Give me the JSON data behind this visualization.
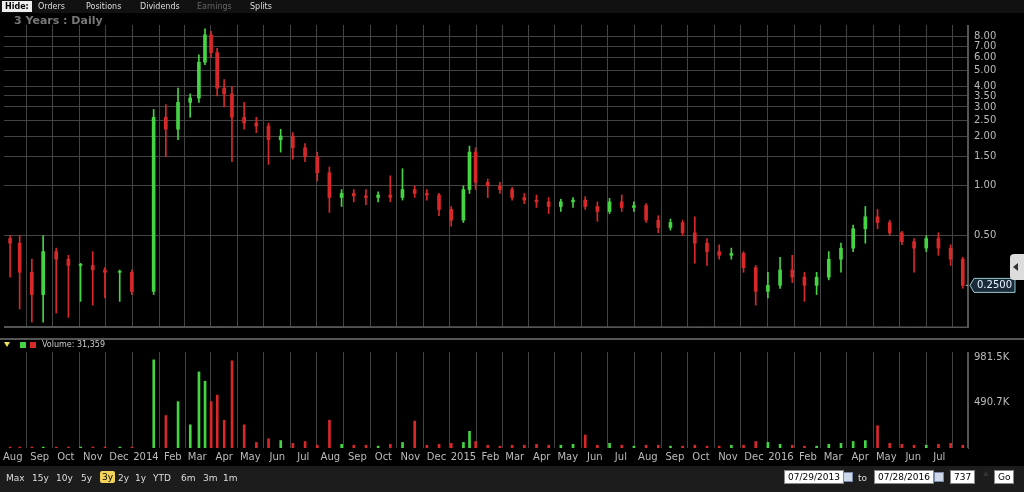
{
  "chart_data": [
    {
      "type": "candlestick",
      "subtitle": "3 Years : Daily",
      "log": true,
      "grid": true,
      "tick_labels": "y",
      "x": [
        "2013-07-29",
        "2013-08-09",
        "2013-08-23",
        "2013-09-05",
        "2013-09-20",
        "2013-10-04",
        "2013-10-18",
        "2013-11-01",
        "2013-11-15",
        "2013-12-02",
        "2013-12-16",
        "2014-01-10",
        "2014-01-24",
        "2014-02-07",
        "2014-02-21",
        "2014-03-03",
        "2014-03-10",
        "2014-03-17",
        "2014-03-24",
        "2014-04-01",
        "2014-04-10",
        "2014-04-24",
        "2014-05-08",
        "2014-05-22",
        "2014-06-05",
        "2014-06-19",
        "2014-07-03",
        "2014-07-17",
        "2014-07-31",
        "2014-08-14",
        "2014-08-28",
        "2014-09-11",
        "2014-09-25",
        "2014-10-09",
        "2014-10-23",
        "2014-11-06",
        "2014-11-20",
        "2014-12-04",
        "2014-12-18",
        "2015-01-01",
        "2015-01-08",
        "2015-01-15",
        "2015-01-29",
        "2015-02-12",
        "2015-02-26",
        "2015-03-12",
        "2015-03-26",
        "2015-04-09",
        "2015-04-23",
        "2015-05-07",
        "2015-05-21",
        "2015-06-04",
        "2015-06-18",
        "2015-07-02",
        "2015-07-16",
        "2015-07-30",
        "2015-08-13",
        "2015-08-27",
        "2015-09-10",
        "2015-09-24",
        "2015-10-08",
        "2015-10-22",
        "2015-11-05",
        "2015-11-19",
        "2015-12-03",
        "2015-12-17",
        "2015-12-31",
        "2016-01-14",
        "2016-01-28",
        "2016-02-11",
        "2016-02-25",
        "2016-03-10",
        "2016-03-24",
        "2016-04-07",
        "2016-04-21",
        "2016-05-05",
        "2016-05-19",
        "2016-06-02",
        "2016-06-16",
        "2016-06-30",
        "2016-07-14",
        "2016-07-28"
      ],
      "ohlc": [
        [
          0.48,
          0.5,
          0.28,
          0.45
        ],
        [
          0.45,
          0.5,
          0.18,
          0.3
        ],
        [
          0.3,
          0.36,
          0.15,
          0.22
        ],
        [
          0.22,
          0.5,
          0.15,
          0.4
        ],
        [
          0.4,
          0.42,
          0.17,
          0.36
        ],
        [
          0.36,
          0.38,
          0.16,
          0.33
        ],
        [
          0.33,
          0.34,
          0.2,
          0.33
        ],
        [
          0.33,
          0.4,
          0.19,
          0.31
        ],
        [
          0.31,
          0.32,
          0.21,
          0.3
        ],
        [
          0.3,
          0.31,
          0.2,
          0.3
        ],
        [
          0.3,
          0.31,
          0.22,
          0.23
        ],
        [
          0.23,
          2.9,
          0.22,
          2.6
        ],
        [
          2.6,
          3.1,
          1.5,
          2.2
        ],
        [
          2.2,
          3.9,
          1.9,
          3.2
        ],
        [
          3.2,
          3.6,
          2.6,
          3.4
        ],
        [
          3.4,
          6.2,
          3.2,
          5.6
        ],
        [
          5.6,
          8.9,
          5.4,
          8.2
        ],
        [
          8.2,
          8.6,
          6.0,
          6.4
        ],
        [
          6.4,
          6.8,
          3.5,
          3.9
        ],
        [
          3.9,
          4.4,
          3.0,
          3.6
        ],
        [
          3.6,
          4.0,
          1.4,
          2.6
        ],
        [
          2.6,
          3.2,
          2.2,
          2.4
        ],
        [
          2.4,
          2.6,
          2.1,
          2.3
        ],
        [
          2.3,
          2.4,
          1.35,
          1.9
        ],
        [
          1.9,
          2.2,
          1.6,
          2.0
        ],
        [
          2.0,
          2.1,
          1.45,
          1.7
        ],
        [
          1.7,
          1.8,
          1.4,
          1.5
        ],
        [
          1.5,
          1.6,
          1.07,
          1.2
        ],
        [
          1.2,
          1.3,
          0.69,
          0.85
        ],
        [
          0.85,
          0.95,
          0.75,
          0.9
        ],
        [
          0.9,
          0.95,
          0.8,
          0.87
        ],
        [
          0.87,
          0.95,
          0.77,
          0.85
        ],
        [
          0.85,
          0.92,
          0.8,
          0.88
        ],
        [
          0.88,
          1.15,
          0.8,
          0.85
        ],
        [
          0.85,
          1.27,
          0.82,
          0.95
        ],
        [
          0.95,
          1.0,
          0.85,
          0.9
        ],
        [
          0.9,
          0.95,
          0.82,
          0.88
        ],
        [
          0.88,
          0.9,
          0.66,
          0.72
        ],
        [
          0.72,
          0.75,
          0.57,
          0.62
        ],
        [
          0.62,
          1.0,
          0.6,
          0.95
        ],
        [
          0.95,
          1.74,
          0.9,
          1.6
        ],
        [
          1.6,
          1.7,
          0.95,
          1.05
        ],
        [
          1.05,
          1.1,
          0.85,
          1.0
        ],
        [
          1.0,
          1.05,
          0.9,
          0.95
        ],
        [
          0.95,
          0.98,
          0.82,
          0.85
        ],
        [
          0.85,
          0.9,
          0.78,
          0.82
        ],
        [
          0.82,
          0.88,
          0.74,
          0.8
        ],
        [
          0.8,
          0.85,
          0.68,
          0.75
        ],
        [
          0.75,
          0.83,
          0.7,
          0.8
        ],
        [
          0.8,
          0.85,
          0.74,
          0.82
        ],
        [
          0.82,
          0.86,
          0.72,
          0.75
        ],
        [
          0.75,
          0.8,
          0.61,
          0.7
        ],
        [
          0.7,
          0.84,
          0.68,
          0.8
        ],
        [
          0.8,
          0.88,
          0.7,
          0.74
        ],
        [
          0.74,
          0.8,
          0.7,
          0.76
        ],
        [
          0.76,
          0.78,
          0.6,
          0.62
        ],
        [
          0.62,
          0.66,
          0.52,
          0.56
        ],
        [
          0.56,
          0.63,
          0.54,
          0.6
        ],
        [
          0.6,
          0.62,
          0.5,
          0.52
        ],
        [
          0.52,
          0.65,
          0.34,
          0.45
        ],
        [
          0.45,
          0.48,
          0.33,
          0.4
        ],
        [
          0.4,
          0.44,
          0.36,
          0.38
        ],
        [
          0.38,
          0.42,
          0.36,
          0.39
        ],
        [
          0.39,
          0.4,
          0.3,
          0.32
        ],
        [
          0.32,
          0.33,
          0.19,
          0.23
        ],
        [
          0.23,
          0.3,
          0.21,
          0.25
        ],
        [
          0.25,
          0.37,
          0.24,
          0.31
        ],
        [
          0.31,
          0.38,
          0.26,
          0.28
        ],
        [
          0.28,
          0.3,
          0.2,
          0.25
        ],
        [
          0.25,
          0.3,
          0.22,
          0.28
        ],
        [
          0.28,
          0.4,
          0.27,
          0.36
        ],
        [
          0.36,
          0.45,
          0.3,
          0.42
        ],
        [
          0.42,
          0.58,
          0.4,
          0.55
        ],
        [
          0.55,
          0.75,
          0.45,
          0.65
        ],
        [
          0.65,
          0.72,
          0.55,
          0.6
        ],
        [
          0.6,
          0.62,
          0.5,
          0.52
        ],
        [
          0.52,
          0.53,
          0.44,
          0.46
        ],
        [
          0.46,
          0.48,
          0.3,
          0.42
        ],
        [
          0.42,
          0.5,
          0.4,
          0.48
        ],
        [
          0.48,
          0.52,
          0.38,
          0.42
        ],
        [
          0.42,
          0.44,
          0.33,
          0.36
        ],
        [
          0.36,
          0.37,
          0.24,
          0.25
        ]
      ],
      "colors": [
        "#d8282a",
        "#d8282a",
        "#d8282a",
        "#45d443",
        "#d8282a",
        "#d8282a",
        "#45d443",
        "#d8282a",
        "#d8282a",
        "#45d443",
        "#d8282a",
        "#45d443",
        "#d8282a",
        "#45d443",
        "#45d443",
        "#45d443",
        "#45d443",
        "#d8282a",
        "#d8282a",
        "#d8282a",
        "#d8282a",
        "#d8282a",
        "#d8282a",
        "#d8282a",
        "#45d443",
        "#d8282a",
        "#d8282a",
        "#d8282a",
        "#d8282a",
        "#45d443",
        "#d8282a",
        "#d8282a",
        "#45d443",
        "#d8282a",
        "#45d443",
        "#d8282a",
        "#d8282a",
        "#d8282a",
        "#d8282a",
        "#45d443",
        "#45d443",
        "#d8282a",
        "#d8282a",
        "#d8282a",
        "#d8282a",
        "#d8282a",
        "#d8282a",
        "#d8282a",
        "#45d443",
        "#45d443",
        "#d8282a",
        "#d8282a",
        "#45d443",
        "#d8282a",
        "#45d443",
        "#d8282a",
        "#d8282a",
        "#45d443",
        "#d8282a",
        "#d8282a",
        "#d8282a",
        "#d8282a",
        "#45d443",
        "#d8282a",
        "#d8282a",
        "#45d443",
        "#45d443",
        "#d8282a",
        "#d8282a",
        "#45d443",
        "#45d443",
        "#45d443",
        "#45d443",
        "#45d443",
        "#d8282a",
        "#d8282a",
        "#d8282a",
        "#d8282a",
        "#45d443",
        "#d8282a",
        "#d8282a",
        "#d8282a"
      ],
      "xlim": [
        "2013-07-22",
        "2016-08-03"
      ],
      "xticks": [
        {
          "value": "2013-08-01",
          "label": null
        },
        {
          "value": "2013-09-01",
          "label": null
        },
        {
          "value": "2013-10-01",
          "label": null
        },
        {
          "value": "2013-11-01",
          "label": null
        },
        {
          "value": "2013-12-01",
          "label": null
        },
        {
          "value": "2014-01-01",
          "label": null
        },
        {
          "value": "2014-02-01",
          "label": null
        },
        {
          "value": "2014-03-01",
          "label": null
        },
        {
          "value": "2014-04-01",
          "label": null
        },
        {
          "value": "2014-05-01",
          "label": null
        },
        {
          "value": "2014-06-01",
          "label": null
        },
        {
          "value": "2014-07-01",
          "label": null
        },
        {
          "value": "2014-08-01",
          "label": null
        },
        {
          "value": "2014-09-01",
          "label": null
        },
        {
          "value": "2014-10-01",
          "label": null
        },
        {
          "value": "2014-11-01",
          "label": null
        },
        {
          "value": "2014-12-01",
          "label": null
        },
        {
          "value": "2015-01-01",
          "label": null
        },
        {
          "value": "2015-02-01",
          "label": null
        },
        {
          "value": "2015-03-01",
          "label": null
        },
        {
          "value": "2015-04-01",
          "label": null
        },
        {
          "value": "2015-05-01",
          "label": null
        },
        {
          "value": "2015-06-01",
          "label": null
        },
        {
          "value": "2015-07-01",
          "label": null
        },
        {
          "value": "2015-08-01",
          "label": null
        },
        {
          "value": "2015-09-01",
          "label": null
        },
        {
          "value": "2015-10-01",
          "label": null
        },
        {
          "value": "2015-11-01",
          "label": null
        },
        {
          "value": "2015-12-01",
          "label": null
        },
        {
          "value": "2016-01-01",
          "label": null
        },
        {
          "value": "2016-02-01",
          "label": null
        },
        {
          "value": "2016-03-01",
          "label": null
        },
        {
          "value": "2016-04-01",
          "label": null
        },
        {
          "value": "2016-05-01",
          "label": null
        },
        {
          "value": "2016-06-01",
          "label": null
        },
        {
          "value": "2016-07-01",
          "label": null
        }
      ],
      "ylim": [
        0.14,
        9.4
      ],
      "yticks": [
        {
          "value": 0.5,
          "label": "0.50"
        },
        {
          "value": 1,
          "label": "1.00"
        },
        {
          "value": 1.5,
          "label": "1.50"
        },
        {
          "value": 2,
          "label": "2.00"
        },
        {
          "value": 2.5,
          "label": "2.50"
        },
        {
          "value": 3,
          "label": "3.00"
        },
        {
          "value": 3.5,
          "label": "3.50"
        },
        {
          "value": 4,
          "label": "4.00"
        },
        {
          "value": 5,
          "label": "5.00"
        },
        {
          "value": 6,
          "label": "6.00"
        },
        {
          "value": 7,
          "label": "7.00"
        },
        {
          "value": 8,
          "label": "8.00"
        }
      ],
      "annotations": [
        "Hide:",
        "Orders",
        "Positions",
        "Dividends",
        "Earnings",
        "Splits",
        {
          "text": "0.2500",
          "x": "2016-07-28",
          "y": 0.25
        }
      ]
    },
    {
      "type": "bar",
      "grid": "x",
      "x": [
        "2013-07-29",
        "2013-08-09",
        "2013-08-23",
        "2013-09-05",
        "2013-09-20",
        "2013-10-04",
        "2013-10-18",
        "2013-11-01",
        "2013-11-15",
        "2013-12-02",
        "2013-12-16",
        "2014-01-10",
        "2014-01-24",
        "2014-02-07",
        "2014-02-21",
        "2014-03-03",
        "2014-03-10",
        "2014-03-17",
        "2014-03-24",
        "2014-04-01",
        "2014-04-10",
        "2014-04-24",
        "2014-05-08",
        "2014-05-22",
        "2014-06-05",
        "2014-06-19",
        "2014-07-03",
        "2014-07-17",
        "2014-07-31",
        "2014-08-14",
        "2014-08-28",
        "2014-09-11",
        "2014-09-25",
        "2014-10-09",
        "2014-10-23",
        "2014-11-06",
        "2014-11-20",
        "2014-12-04",
        "2014-12-18",
        "2015-01-01",
        "2015-01-08",
        "2015-01-15",
        "2015-01-29",
        "2015-02-12",
        "2015-02-26",
        "2015-03-12",
        "2015-03-26",
        "2015-04-09",
        "2015-04-23",
        "2015-05-07",
        "2015-05-21",
        "2015-06-04",
        "2015-06-18",
        "2015-07-02",
        "2015-07-16",
        "2015-07-30",
        "2015-08-13",
        "2015-08-27",
        "2015-09-10",
        "2015-09-24",
        "2015-10-08",
        "2015-10-22",
        "2015-11-05",
        "2015-11-19",
        "2015-12-03",
        "2015-12-17",
        "2015-12-31",
        "2016-01-14",
        "2016-01-28",
        "2016-02-11",
        "2016-02-25",
        "2016-03-10",
        "2016-03-24",
        "2016-04-07",
        "2016-04-21",
        "2016-05-05",
        "2016-05-19",
        "2016-06-02",
        "2016-06-16",
        "2016-06-30",
        "2016-07-14",
        "2016-07-28"
      ],
      "values": [
        10000,
        10000,
        10000,
        10000,
        10000,
        10000,
        10000,
        10000,
        10000,
        10000,
        10000,
        950000,
        350000,
        500000,
        250000,
        820000,
        720000,
        500000,
        570000,
        300000,
        940000,
        250000,
        60000,
        100000,
        80000,
        50000,
        70000,
        30000,
        300000,
        40000,
        30000,
        30000,
        20000,
        40000,
        60000,
        290000,
        30000,
        40000,
        50000,
        60000,
        180000,
        70000,
        30000,
        20000,
        30000,
        30000,
        40000,
        30000,
        30000,
        40000,
        140000,
        30000,
        50000,
        30000,
        20000,
        30000,
        30000,
        20000,
        20000,
        30000,
        20000,
        20000,
        30000,
        30000,
        70000,
        60000,
        40000,
        30000,
        20000,
        20000,
        40000,
        50000,
        70000,
        80000,
        240000,
        50000,
        40000,
        30000,
        30000,
        40000,
        50000,
        30000
      ],
      "colors": [
        "#d8282a",
        "#d8282a",
        "#d8282a",
        "#45d443",
        "#d8282a",
        "#d8282a",
        "#45d443",
        "#d8282a",
        "#d8282a",
        "#45d443",
        "#d8282a",
        "#45d443",
        "#d8282a",
        "#45d443",
        "#45d443",
        "#45d443",
        "#45d443",
        "#d8282a",
        "#d8282a",
        "#d8282a",
        "#d8282a",
        "#d8282a",
        "#d8282a",
        "#d8282a",
        "#45d443",
        "#d8282a",
        "#d8282a",
        "#d8282a",
        "#d8282a",
        "#45d443",
        "#d8282a",
        "#d8282a",
        "#45d443",
        "#d8282a",
        "#45d443",
        "#d8282a",
        "#d8282a",
        "#d8282a",
        "#d8282a",
        "#45d443",
        "#45d443",
        "#d8282a",
        "#d8282a",
        "#d8282a",
        "#d8282a",
        "#d8282a",
        "#d8282a",
        "#d8282a",
        "#45d443",
        "#45d443",
        "#d8282a",
        "#d8282a",
        "#45d443",
        "#d8282a",
        "#45d443",
        "#d8282a",
        "#d8282a",
        "#45d443",
        "#d8282a",
        "#d8282a",
        "#d8282a",
        "#d8282a",
        "#45d443",
        "#d8282a",
        "#d8282a",
        "#45d443",
        "#45d443",
        "#d8282a",
        "#d8282a",
        "#45d443",
        "#45d443",
        "#45d443",
        "#45d443",
        "#45d443",
        "#d8282a",
        "#d8282a",
        "#d8282a",
        "#d8282a",
        "#45d443",
        "#d8282a",
        "#d8282a",
        "#d8282a"
      ],
      "xlim": [
        "2013-07-22",
        "2016-08-03"
      ],
      "xticks": [
        {
          "value": "2013-08-01",
          "label": "Aug"
        },
        {
          "value": "2013-09-01",
          "label": "Sep"
        },
        {
          "value": "2013-10-01",
          "label": "Oct"
        },
        {
          "value": "2013-11-01",
          "label": "Nov"
        },
        {
          "value": "2013-12-01",
          "label": "Dec"
        },
        {
          "value": "2014-01-01",
          "label": "2014"
        },
        {
          "value": "2014-02-01",
          "label": "Feb"
        },
        {
          "value": "2014-03-01",
          "label": "Mar"
        },
        {
          "value": "2014-04-01",
          "label": "Apr"
        },
        {
          "value": "2014-05-01",
          "label": "May"
        },
        {
          "value": "2014-06-01",
          "label": "Jun"
        },
        {
          "value": "2014-07-01",
          "label": "Jul"
        },
        {
          "value": "2014-08-01",
          "label": "Aug"
        },
        {
          "value": "2014-09-01",
          "label": "Sep"
        },
        {
          "value": "2014-10-01",
          "label": "Oct"
        },
        {
          "value": "2014-11-01",
          "label": "Nov"
        },
        {
          "value": "2014-12-01",
          "label": "Dec"
        },
        {
          "value": "2015-01-01",
          "label": "2015"
        },
        {
          "value": "2015-02-01",
          "label": "Feb"
        },
        {
          "value": "2015-03-01",
          "label": "Mar"
        },
        {
          "value": "2015-04-01",
          "label": "Apr"
        },
        {
          "value": "2015-05-01",
          "label": "May"
        },
        {
          "value": "2015-06-01",
          "label": "Jun"
        },
        {
          "value": "2015-07-01",
          "label": "Jul"
        },
        {
          "value": "2015-08-01",
          "label": "Aug"
        },
        {
          "value": "2015-09-01",
          "label": "Sep"
        },
        {
          "value": "2015-10-01",
          "label": "Oct"
        },
        {
          "value": "2015-11-01",
          "label": "Nov"
        },
        {
          "value": "2015-12-01",
          "label": "Dec"
        },
        {
          "value": "2016-01-01",
          "label": "2016"
        },
        {
          "value": "2016-02-01",
          "label": "Feb"
        },
        {
          "value": "2016-03-01",
          "label": "Mar"
        },
        {
          "value": "2016-04-01",
          "label": "Apr"
        },
        {
          "value": "2016-05-01",
          "label": "May"
        },
        {
          "value": "2016-06-01",
          "label": "Jun"
        },
        {
          "value": "2016-07-01",
          "label": "Jul"
        }
      ],
      "ylim": [
        0,
        1035000
      ],
      "yticks": [
        {
          "value": 490700,
          "label": "490.7K"
        },
        {
          "value": 981500,
          "label": "981.5K"
        }
      ],
      "annotations": [
        "Volume: 31,359",
        "Max",
        "15y",
        "10y",
        "5y",
        "3y",
        "2y",
        "1y",
        "YTD",
        "6m",
        "3m",
        "1m",
        "07/29/2013",
        "to",
        "07/28/2016",
        "737",
        "Go"
      ]
    }
  ]
}
